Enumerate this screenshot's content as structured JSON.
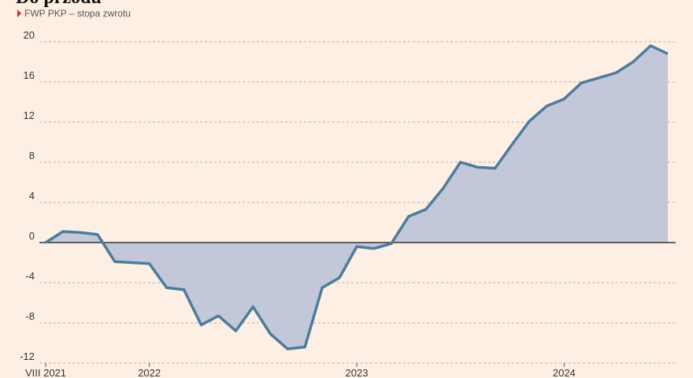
{
  "chart_data": {
    "type": "area",
    "title": "Do przodu",
    "subtitle": "FWP PKP – stopa zwrotu",
    "x": [
      0,
      1,
      2,
      3,
      4,
      5,
      6,
      7,
      8,
      9,
      10,
      11,
      12,
      13,
      14,
      15,
      16,
      17,
      18,
      19,
      20,
      21,
      22,
      23,
      24,
      25,
      26,
      27,
      28,
      29,
      30,
      31,
      32,
      33,
      34,
      35,
      36
    ],
    "series": [
      {
        "name": "FWP PKP",
        "color": "#4f7b9b",
        "fill": "#c2c8d9",
        "values": [
          0,
          1.1,
          1.0,
          0.8,
          -1.9,
          -2.0,
          -2.1,
          -4.5,
          -4.7,
          -8.2,
          -7.3,
          -8.8,
          -6.4,
          -9.1,
          -10.6,
          -10.4,
          -4.5,
          -3.5,
          -0.4,
          -0.6,
          -0.1,
          2.6,
          3.3,
          5.4,
          8.0,
          7.5,
          7.4,
          9.8,
          12.1,
          13.6,
          14.3,
          15.9,
          16.4,
          16.9,
          18.0,
          19.6,
          18.8
        ]
      }
    ],
    "xlim": [
      0,
      36
    ],
    "xticks": [
      {
        "value": 0,
        "label": "VIII 2021"
      },
      {
        "value": 6,
        "label": "2022"
      },
      {
        "value": 18,
        "label": "2023"
      },
      {
        "value": 30,
        "label": "2024"
      }
    ],
    "ylim": [
      -12,
      20
    ],
    "yticks": [
      -12,
      -8,
      -4,
      0,
      4,
      8,
      12,
      16,
      20
    ],
    "grid": true
  }
}
